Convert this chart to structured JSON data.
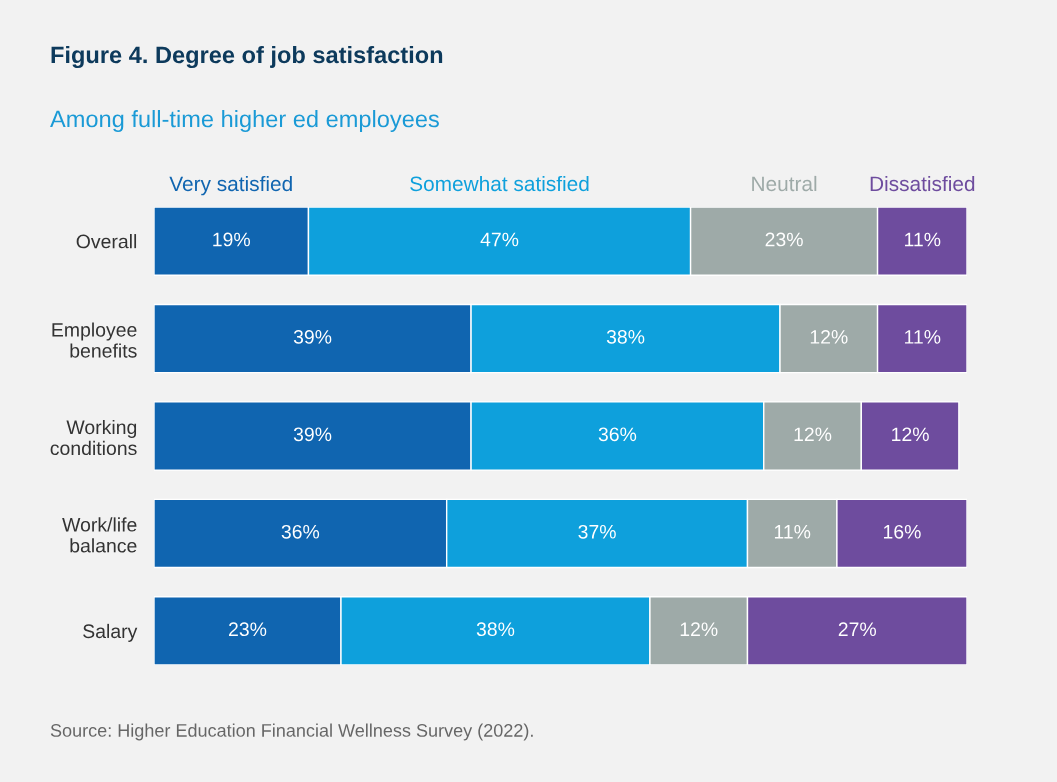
{
  "chart_data": {
    "type": "bar",
    "orientation": "horizontal",
    "stacked": true,
    "legend": "top",
    "grid": false,
    "title": "Figure 4. Degree of job satisfaction",
    "subtitle": "Among full-time higher ed employees",
    "categories": [
      "Overall",
      "Employee\nbenefits",
      "Working\nconditions",
      "Work/life\nbalance",
      "Salary"
    ],
    "series": [
      {
        "name": "Very satisfied",
        "color": "#1065b0",
        "values": [
          19,
          39,
          39,
          36,
          23
        ],
        "value_labels": [
          "19%",
          "39%",
          "39%",
          "36%",
          "23%"
        ]
      },
      {
        "name": "Somewhat satisfied",
        "color": "#0ea0dc",
        "values": [
          47,
          38,
          36,
          37,
          38
        ],
        "value_labels": [
          "47%",
          "38%",
          "36%",
          "37%",
          "38%"
        ]
      },
      {
        "name": "Neutral",
        "color": "#9eaaa8",
        "values": [
          23,
          12,
          12,
          11,
          12
        ],
        "value_labels": [
          "23%",
          "12%",
          "12%",
          "11%",
          "12%"
        ]
      },
      {
        "name": "Dissatisfied",
        "color": "#6e4c9e",
        "values": [
          11,
          11,
          12,
          16,
          27
        ],
        "value_labels": [
          "11%",
          "11%",
          "12%",
          "16%",
          "27%"
        ]
      }
    ],
    "annotations": [
      "Source: Higher Education Financial Wellness Survey (2022)."
    ]
  }
}
